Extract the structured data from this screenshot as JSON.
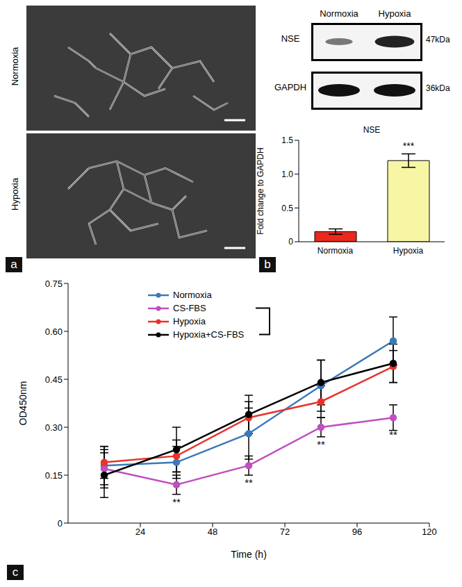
{
  "panels": {
    "a": {
      "panel_label": "a",
      "images": [
        "Normoxia",
        "Hypoxia"
      ]
    },
    "blot": {
      "columns": [
        "Normoxia",
        "Hypoxia"
      ],
      "bands": [
        {
          "name": "NSE",
          "size": "47kDa"
        },
        {
          "name": "GAPDH",
          "size": "36kDa"
        }
      ]
    }
  },
  "chart_data": [
    {
      "type": "bar",
      "panel_label": "b",
      "title": "NSE",
      "categories": [
        "Normoxia",
        "Hypoxia"
      ],
      "values": [
        0.15,
        1.2
      ],
      "errors": [
        0.04,
        0.1
      ],
      "colors": [
        "#e8291c",
        "#f6f6a4"
      ],
      "y_label": "Fold change to GAPDH",
      "ylim": [
        0,
        1.5
      ],
      "yticks": [
        0,
        0.5,
        {
          "value": 1,
          "label": "1.0"
        },
        1.5
      ],
      "annotations": [
        {
          "category": "Hypoxia",
          "text": "***"
        }
      ]
    },
    {
      "type": "line",
      "panel_label": "c",
      "x": [
        12,
        36,
        60,
        84,
        108
      ],
      "x_label": "Time (h)",
      "y_label": "OD450nm",
      "xlim": [
        0,
        120
      ],
      "xticks": [
        24,
        48,
        72,
        96,
        120
      ],
      "ylim": [
        0,
        0.75
      ],
      "yticks": [
        0,
        0.15,
        {
          "value": 0.3,
          "label": "0.30"
        },
        0.45,
        {
          "value": 0.6,
          "label": "0.60"
        },
        0.75
      ],
      "legend": "top-left",
      "marker": "circle",
      "series": [
        {
          "name": "Normoxia",
          "color": "#3a7ab8",
          "values": [
            0.18,
            0.19,
            0.28,
            0.43,
            0.57
          ],
          "errors": [
            0.06,
            0.05,
            0.08,
            0.08,
            0.075
          ]
        },
        {
          "name": "CS-FBS",
          "color": "#c04fc0",
          "values": [
            0.17,
            0.12,
            0.18,
            0.3,
            0.33
          ],
          "errors": [
            0.06,
            0.03,
            0.03,
            0.03,
            0.04
          ]
        },
        {
          "name": "Hypoxia",
          "color": "#e8322b",
          "values": [
            0.19,
            0.21,
            0.33,
            0.38,
            0.49
          ],
          "errors": [
            0.05,
            0.05,
            0.05,
            0.05,
            0.05
          ]
        },
        {
          "name": "Hypoxia+CS-FBS",
          "color": "#000000",
          "values": [
            0.15,
            0.23,
            0.34,
            0.44,
            0.5
          ],
          "errors": [
            0.07,
            0.07,
            0.06,
            0.07,
            0.06
          ]
        }
      ],
      "annotations": [
        {
          "series": "CS-FBS",
          "x": 36,
          "text": "**"
        },
        {
          "series": "CS-FBS",
          "x": 60,
          "text": "**"
        },
        {
          "series": "CS-FBS",
          "x": 84,
          "text": "**"
        },
        {
          "series": "CS-FBS",
          "x": 108,
          "text": "**"
        }
      ]
    }
  ]
}
